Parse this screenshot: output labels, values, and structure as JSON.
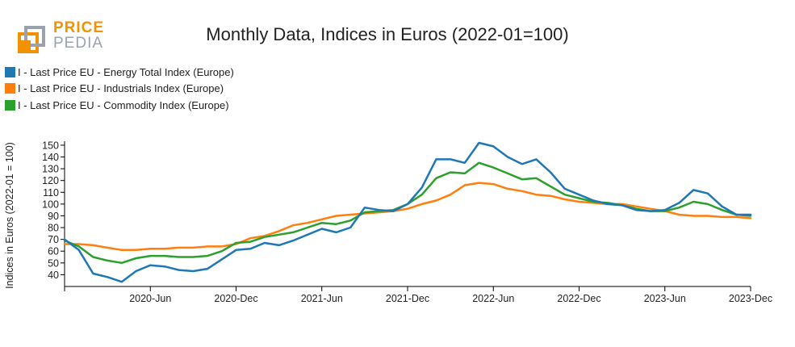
{
  "logo": {
    "line1": "PRICE",
    "line2": "PEDIA"
  },
  "chart_data": {
    "type": "line",
    "title": "Monthly Data, Indices in Euros (2022-01=100)",
    "xlabel": "",
    "ylabel": "Indices in Euros (2022-01 = 100)",
    "ylim": [
      30,
      152
    ],
    "yticks": [
      40,
      50,
      60,
      70,
      80,
      90,
      100,
      110,
      120,
      130,
      140,
      150
    ],
    "xticks": [
      {
        "index": 0,
        "label": ""
      },
      {
        "index": 6,
        "label": "2020-Jun"
      },
      {
        "index": 12,
        "label": "2020-Dec"
      },
      {
        "index": 18,
        "label": "2021-Jun"
      },
      {
        "index": 24,
        "label": "2021-Dec"
      },
      {
        "index": 30,
        "label": "2022-Jun"
      },
      {
        "index": 36,
        "label": "2022-Dec"
      },
      {
        "index": 42,
        "label": "2023-Jun"
      },
      {
        "index": 48,
        "label": "2023-Dec"
      }
    ],
    "x": [
      "2019-Dec",
      "2020-Jan",
      "2020-Feb",
      "2020-Mar",
      "2020-Apr",
      "2020-May",
      "2020-Jun",
      "2020-Jul",
      "2020-Aug",
      "2020-Sep",
      "2020-Oct",
      "2020-Nov",
      "2020-Dec",
      "2021-Jan",
      "2021-Feb",
      "2021-Mar",
      "2021-Apr",
      "2021-May",
      "2021-Jun",
      "2021-Jul",
      "2021-Aug",
      "2021-Sep",
      "2021-Oct",
      "2021-Nov",
      "2021-Dec",
      "2022-Jan",
      "2022-Feb",
      "2022-Mar",
      "2022-Apr",
      "2022-May",
      "2022-Jun",
      "2022-Jul",
      "2022-Aug",
      "2022-Sep",
      "2022-Oct",
      "2022-Nov",
      "2022-Dec",
      "2023-Jan",
      "2023-Feb",
      "2023-Mar",
      "2023-Apr",
      "2023-May",
      "2023-Jun",
      "2023-Jul",
      "2023-Aug",
      "2023-Sep",
      "2023-Oct",
      "2023-Nov",
      "2023-Dec"
    ],
    "series": [
      {
        "name": "I - Last Price EU - Energy Total Index (Europe)",
        "color": "#1f77b4",
        "values": [
          70,
          61,
          41,
          38,
          34,
          43,
          48,
          47,
          44,
          43,
          45,
          53,
          61,
          62,
          67,
          65,
          69,
          74,
          79,
          76,
          80,
          97,
          95,
          94,
          100,
          114,
          138,
          138,
          135,
          152,
          149,
          140,
          134,
          138,
          127,
          113,
          108,
          103,
          100,
          99,
          95,
          94,
          95,
          101,
          112,
          109,
          98,
          91,
          91
        ]
      },
      {
        "name": "I - Last Price EU - Industrials Index (Europe)",
        "color": "#ff7f0e",
        "values": [
          66,
          66,
          65,
          63,
          61,
          61,
          62,
          62,
          63,
          63,
          64,
          64,
          66,
          71,
          73,
          77,
          82,
          84,
          87,
          90,
          91,
          92,
          93,
          94,
          96,
          100,
          103,
          108,
          116,
          118,
          117,
          113,
          111,
          108,
          107,
          104,
          102,
          101,
          100,
          100,
          98,
          96,
          94,
          91,
          90,
          90,
          89,
          89,
          88
        ]
      },
      {
        "name": "I - Last Price EU - Commodity Index (Europe)",
        "color": "#2ca02c",
        "values": [
          69,
          64,
          55,
          52,
          50,
          54,
          56,
          56,
          55,
          55,
          56,
          60,
          67,
          68,
          72,
          74,
          76,
          80,
          84,
          83,
          86,
          93,
          94,
          95,
          100,
          108,
          122,
          127,
          126,
          135,
          131,
          126,
          121,
          122,
          115,
          108,
          105,
          102,
          101,
          99,
          96,
          94,
          94,
          97,
          102,
          100,
          95,
          91,
          90
        ]
      }
    ]
  }
}
